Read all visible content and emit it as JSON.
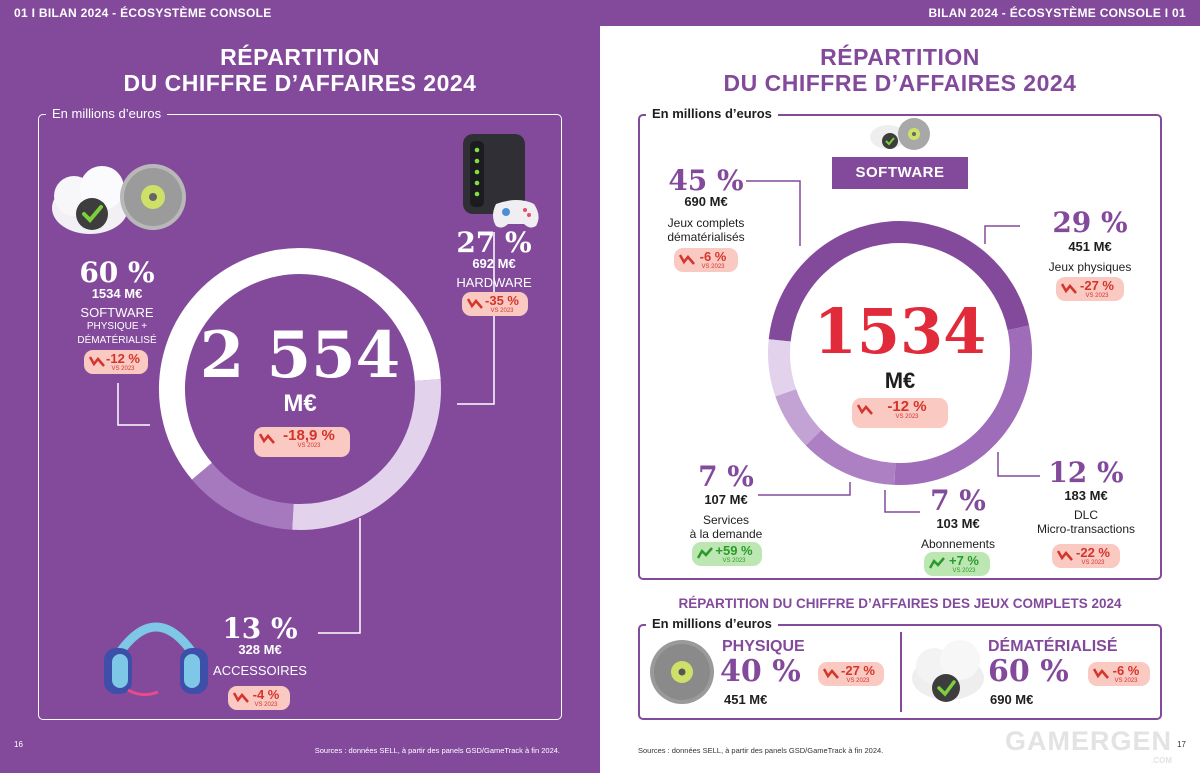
{
  "left": {
    "running_head": "01  I  BILAN 2024 - ÉCOSYSTÈME CONSOLE",
    "title_line1": "RÉPARTITION",
    "title_line2": "DU CHIFFRE D’AFFAIRES 2024",
    "frame_label": "En millions d’euros",
    "total_value": "2 554",
    "total_unit": "M€",
    "total_change": "-18,9 %",
    "vs_label": "VS 2023",
    "segments": [
      {
        "name": "SOFTWARE PHYSIQUE + DÉMATÉRIALISÉ",
        "line1": "SOFTWARE",
        "line2": "PHYSIQUE +",
        "line3": "DÉMATÉRIALISÉ",
        "pct": "60 %",
        "amount": "1534 M€",
        "change": "-12 %",
        "share": 60
      },
      {
        "name": "HARDWARE",
        "line1": "HARDWARE",
        "pct": "27 %",
        "amount": "692 M€",
        "change": "-35 %",
        "share": 27
      },
      {
        "name": "ACCESSOIRES",
        "line1": "ACCESSOIRES",
        "pct": "13 %",
        "amount": "328 M€",
        "change": "-4 %",
        "share": 13
      }
    ],
    "source": "Sources : données SELL, à partir des panels GSD/GameTrack à fin 2024.",
    "page_number": "16"
  },
  "right": {
    "running_head": "BILAN 2024 - ÉCOSYSTÈME CONSOLE  I  01",
    "title_line1": "RÉPARTITION",
    "title_line2": "DU CHIFFRE D’AFFAIRES 2024",
    "frame_label": "En millions d’euros",
    "software_label": "SOFTWARE",
    "total_value": "1534",
    "total_unit": "M€",
    "total_change": "-12 %",
    "vs_label": "VS 2023",
    "segments": [
      {
        "line1": "Jeux complets",
        "line2": "dématérialisés",
        "pct": "45 %",
        "amount": "690 M€",
        "change": "-6 %",
        "direction": "down",
        "share": 45
      },
      {
        "line1": "Jeux physiques",
        "pct": "29 %",
        "amount": "451 M€",
        "change": "-27 %",
        "direction": "down",
        "share": 29
      },
      {
        "line1": "DLC",
        "line2": "Micro-transactions",
        "pct": "12 %",
        "amount": "183 M€",
        "change": "-22 %",
        "direction": "down",
        "share": 12
      },
      {
        "line1": "Abonnements",
        "pct": "7 %",
        "amount": "103 M€",
        "change": "+7 %",
        "direction": "up",
        "share": 7
      },
      {
        "line1": "Services",
        "line2": "à la demande",
        "pct": "7 %",
        "amount": "107 M€",
        "change": "+59 %",
        "direction": "up",
        "share": 7
      }
    ],
    "games_title": "RÉPARTITION DU CHIFFRE D’AFFAIRES DES JEUX COMPLETS 2024",
    "games_frame_label": "En millions d’euros",
    "games": [
      {
        "label": "PHYSIQUE",
        "pct": "40 %",
        "amount": "451 M€",
        "change": "-27 %"
      },
      {
        "label": "DÉMATÉRIALISÉ",
        "pct": "60 %",
        "amount": "690 M€",
        "change": "-6 %"
      }
    ],
    "source": "Sources : données SELL, à partir des panels GSD/GameTrack à fin 2024.",
    "page_number": "17",
    "watermark": "GAMERGEN",
    "watermark_sub": ".COM"
  },
  "colors": {
    "purple": "#834a9c",
    "purple_mid": "#a679bf",
    "purple_light": "#e2d2ec",
    "red": "#e12a3a",
    "badge_red_bg": "#f9c9c2",
    "badge_green_bg": "#bde7b2"
  },
  "icons": [
    "cloud-check-icon",
    "disc-icon",
    "console-tower-icon",
    "gamepad-icon",
    "headset-icon",
    "trend-down-icon",
    "trend-up-icon"
  ]
}
